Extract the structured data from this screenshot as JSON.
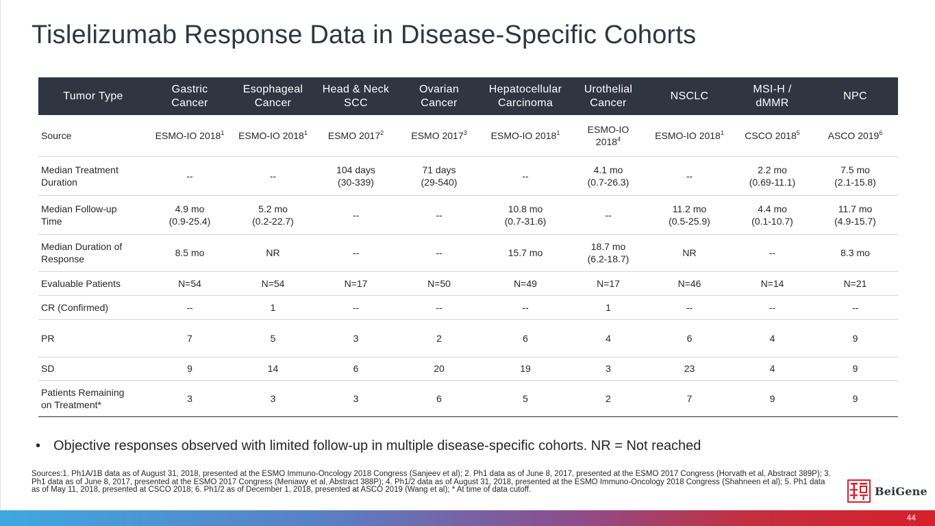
{
  "title": "Tislelizumab Response Data in Disease-Specific Cohorts",
  "table": {
    "header": {
      "row_label": "Tumor Type",
      "columns": [
        {
          "line1": "Gastric",
          "line2": "Cancer"
        },
        {
          "line1": "Esophageal",
          "line2": "Cancer"
        },
        {
          "line1": "Head & Neck",
          "line2": "SCC"
        },
        {
          "line1": "Ovarian",
          "line2": "Cancer"
        },
        {
          "line1": "Hepatocellular",
          "line2": "Carcinoma"
        },
        {
          "line1": "Urothelial",
          "line2": "Cancer"
        },
        {
          "line1": "NSCLC",
          "line2": ""
        },
        {
          "line1": "MSI-H /",
          "line2": "dMMR"
        },
        {
          "line1": "NPC",
          "line2": ""
        }
      ]
    },
    "source_row": {
      "label": "Source",
      "cells": [
        {
          "text": "ESMO-IO 2018",
          "sup": "1"
        },
        {
          "text": "ESMO-IO 2018",
          "sup": "1"
        },
        {
          "text": "ESMO 2017",
          "sup": "2"
        },
        {
          "text": "ESMO 2017",
          "sup": "3"
        },
        {
          "text": "ESMO-IO 2018",
          "sup": "1"
        },
        {
          "text": "ESMO-IO 2018",
          "sup": "4"
        },
        {
          "text": "ESMO-IO 2018",
          "sup": "1"
        },
        {
          "text": "CSCO 2018",
          "sup": "5"
        },
        {
          "text": "ASCO 2019",
          "sup": "6"
        }
      ]
    },
    "rows": [
      {
        "label1": "Median Treatment",
        "label2": "Duration",
        "cells": [
          {
            "a": "--",
            "b": ""
          },
          {
            "a": "--",
            "b": ""
          },
          {
            "a": "104 days",
            "b": "(30-339)"
          },
          {
            "a": "71 days",
            "b": "(29-540)"
          },
          {
            "a": "--",
            "b": ""
          },
          {
            "a": "4.1 mo",
            "b": "(0.7-26.3)"
          },
          {
            "a": "--",
            "b": ""
          },
          {
            "a": "2.2 mo",
            "b": "(0.69-11.1)"
          },
          {
            "a": "7.5 mo",
            "b": "(2.1-15.8)"
          }
        ]
      },
      {
        "label1": "Median Follow-up",
        "label2": "Time",
        "cells": [
          {
            "a": "4.9 mo",
            "b": "(0.9-25.4)"
          },
          {
            "a": "5.2 mo",
            "b": "(0.2-22.7)"
          },
          {
            "a": "--",
            "b": ""
          },
          {
            "a": "--",
            "b": ""
          },
          {
            "a": "10.8 mo",
            "b": "(0.7-31.6)"
          },
          {
            "a": "--",
            "b": ""
          },
          {
            "a": "11.2 mo",
            "b": "(0.5-25.9)"
          },
          {
            "a": "4.4 mo",
            "b": "(0.1-10.7)"
          },
          {
            "a": "11.7 mo",
            "b": "(4.9-15.7)"
          }
        ]
      },
      {
        "label1": "Median Duration of",
        "label2": "Response",
        "cells": [
          {
            "a": "8.5 mo",
            "b": ""
          },
          {
            "a": "NR",
            "b": ""
          },
          {
            "a": "--",
            "b": ""
          },
          {
            "a": "--",
            "b": ""
          },
          {
            "a": "15.7 mo",
            "b": ""
          },
          {
            "a": "18.7 mo",
            "b": "(6.2-18.7)"
          },
          {
            "a": "NR",
            "b": ""
          },
          {
            "a": "--",
            "b": ""
          },
          {
            "a": "8.3 mo",
            "b": ""
          }
        ]
      },
      {
        "label1": "Evaluable Patients",
        "label2": "",
        "cells": [
          {
            "a": "N=54",
            "b": ""
          },
          {
            "a": "N=54",
            "b": ""
          },
          {
            "a": "N=17",
            "b": ""
          },
          {
            "a": "N=50",
            "b": ""
          },
          {
            "a": "N=49",
            "b": ""
          },
          {
            "a": "N=17",
            "b": ""
          },
          {
            "a": "N=46",
            "b": ""
          },
          {
            "a": "N=14",
            "b": ""
          },
          {
            "a": "N=21",
            "b": ""
          }
        ]
      },
      {
        "label1": "CR (Confirmed)",
        "label2": "",
        "cells": [
          {
            "a": "--",
            "b": ""
          },
          {
            "a": "1",
            "b": ""
          },
          {
            "a": "--",
            "b": ""
          },
          {
            "a": "--",
            "b": ""
          },
          {
            "a": "--",
            "b": ""
          },
          {
            "a": "1",
            "b": ""
          },
          {
            "a": "--",
            "b": ""
          },
          {
            "a": "--",
            "b": ""
          },
          {
            "a": "--",
            "b": ""
          }
        ]
      },
      {
        "label1": "PR",
        "label2": "",
        "cells": [
          {
            "a": "7",
            "b": ""
          },
          {
            "a": "5",
            "b": ""
          },
          {
            "a": "3",
            "b": ""
          },
          {
            "a": "2",
            "b": ""
          },
          {
            "a": "6",
            "b": ""
          },
          {
            "a": "4",
            "b": ""
          },
          {
            "a": "6",
            "b": ""
          },
          {
            "a": "4",
            "b": ""
          },
          {
            "a": "9",
            "b": ""
          }
        ]
      },
      {
        "label1": "SD",
        "label2": "",
        "cells": [
          {
            "a": "9",
            "b": ""
          },
          {
            "a": "14",
            "b": ""
          },
          {
            "a": "6",
            "b": ""
          },
          {
            "a": "20",
            "b": ""
          },
          {
            "a": "19",
            "b": ""
          },
          {
            "a": "3",
            "b": ""
          },
          {
            "a": "23",
            "b": ""
          },
          {
            "a": "4",
            "b": ""
          },
          {
            "a": "9",
            "b": ""
          }
        ]
      },
      {
        "label1": "Patients Remaining",
        "label2": "on Treatment*",
        "cells": [
          {
            "a": "3",
            "b": ""
          },
          {
            "a": "3",
            "b": ""
          },
          {
            "a": "3",
            "b": ""
          },
          {
            "a": "6",
            "b": ""
          },
          {
            "a": "5",
            "b": ""
          },
          {
            "a": "2",
            "b": ""
          },
          {
            "a": "7",
            "b": ""
          },
          {
            "a": "9",
            "b": ""
          },
          {
            "a": "9",
            "b": ""
          }
        ]
      }
    ]
  },
  "bullet": {
    "marker": "•",
    "text": "Objective responses observed with limited follow-up in multiple disease-specific cohorts. NR = Not reached"
  },
  "sources": "Sources:1. Ph1A/1B data as of August 31, 2018, presented at the ESMO Immuno-Oncology 2018 Congress (Sanjeev et al); 2. Ph1 data as of June 8, 2017, presented at the ESMO 2017 Congress (Horvath et al, Abstract 389P); 3. Ph1 data as of June 8, 2017, presented at the ESMO 2017 Congress (Meniawy et al, Abstract 388P); 4. Ph1/2 data as of August 31, 2018, presented at the ESMO Immuno-Oncology 2018 Congress (Shahneen et al); 5. Ph1 data as of May 11, 2018, presented at CSCO 2018; 6. Ph1/2 as of December 1, 2018, presented at ASCO 2019 (Wang et al); * At time of data cutoff.",
  "logo": {
    "text": "BeiGene",
    "mark_icon": "beigene-seal-icon"
  },
  "page_number": "44",
  "colors": {
    "header_bg": "#2f3541",
    "text": "#262626",
    "logo_red": "#d6202b",
    "footer_start": "#3fa8e0",
    "footer_end": "#d6202b"
  }
}
